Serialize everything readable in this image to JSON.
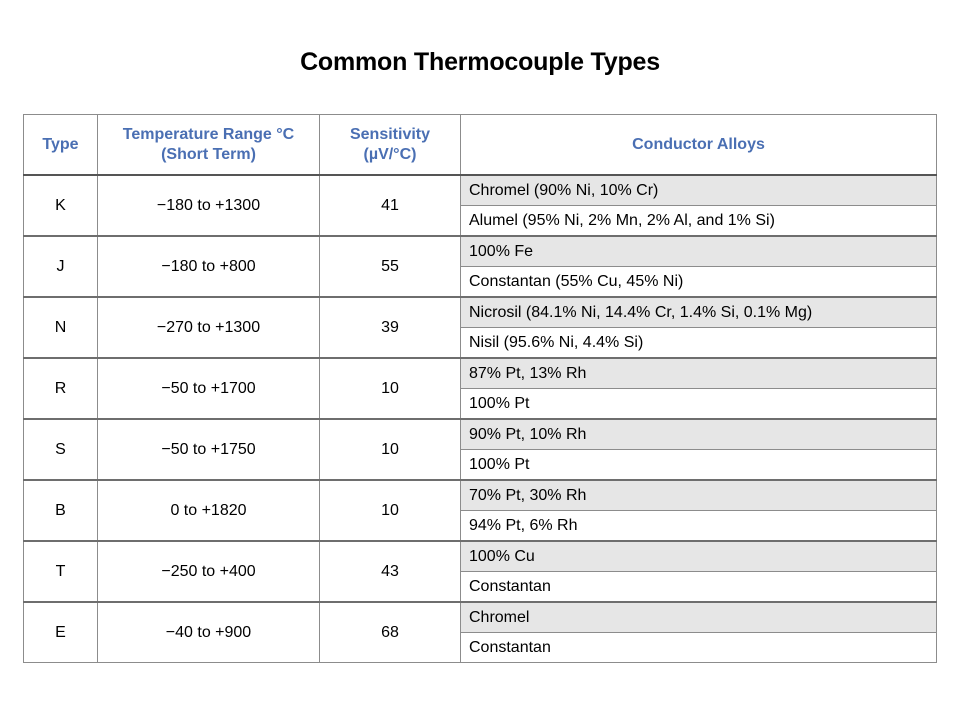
{
  "title": "Common Thermocouple Types",
  "headers": {
    "type": "Type",
    "range_line1": "Temperature Range °C",
    "range_line2": "(Short Term)",
    "sens_line1": "Sensitivity",
    "sens_line2": "(µV/°C)",
    "alloys": "Conductor Alloys"
  },
  "rows": [
    {
      "type": "K",
      "range": "−180 to +1300",
      "sensitivity": "41",
      "alloys": [
        "Chromel (90% Ni, 10% Cr)",
        "Alumel (95% Ni, 2% Mn, 2% Al, and 1% Si)"
      ]
    },
    {
      "type": "J",
      "range": "−180 to +800",
      "sensitivity": "55",
      "alloys": [
        "100% Fe",
        "Constantan (55% Cu, 45% Ni)"
      ]
    },
    {
      "type": "N",
      "range": "−270 to +1300",
      "sensitivity": "39",
      "alloys": [
        "Nicrosil (84.1% Ni, 14.4% Cr, 1.4% Si, 0.1% Mg)",
        "Nisil (95.6% Ni, 4.4% Si)"
      ]
    },
    {
      "type": "R",
      "range": "−50 to +1700",
      "sensitivity": "10",
      "alloys": [
        "87% Pt, 13% Rh",
        "100% Pt"
      ]
    },
    {
      "type": "S",
      "range": "−50 to +1750",
      "sensitivity": "10",
      "alloys": [
        "90% Pt, 10% Rh",
        "100% Pt"
      ]
    },
    {
      "type": "B",
      "range": "0 to +1820",
      "sensitivity": "10",
      "alloys": [
        "70% Pt, 30% Rh",
        "94% Pt, 6% Rh"
      ]
    },
    {
      "type": "T",
      "range": "−250 to +400",
      "sensitivity": "43",
      "alloys": [
        "100% Cu",
        "Constantan"
      ]
    },
    {
      "type": "E",
      "range": "−40 to +900",
      "sensitivity": "68",
      "alloys": [
        "Chromel",
        "Constantan"
      ]
    }
  ],
  "colors": {
    "header_text": "#4a6fb3",
    "shade_row": "#e6e6e6",
    "grid": "#8c8c8c"
  }
}
